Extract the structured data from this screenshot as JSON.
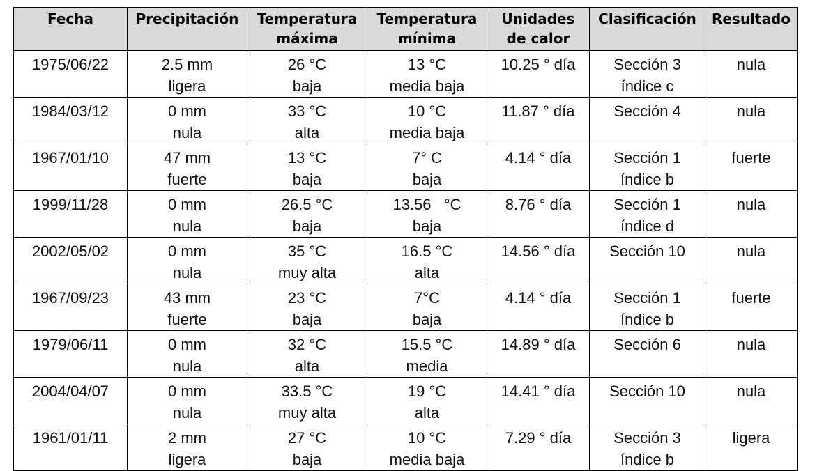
{
  "table": {
    "header": [
      [
        "Fecha"
      ],
      [
        "Precipitación"
      ],
      [
        "Temperatura",
        "máxima"
      ],
      [
        "Temperatura",
        "mínima"
      ],
      [
        "Unidades",
        "de calor"
      ],
      [
        "Clasificación"
      ],
      [
        "Resultado"
      ]
    ],
    "rows": [
      [
        [
          "1975/06/22"
        ],
        [
          "2.5 mm",
          "ligera"
        ],
        [
          "26 °C",
          "baja"
        ],
        [
          "13 °C",
          "media baja"
        ],
        [
          "10.25 ° día"
        ],
        [
          "Sección 3",
          "índice c"
        ],
        [
          "nula"
        ]
      ],
      [
        [
          "1984/03/12"
        ],
        [
          "0 mm",
          "nula"
        ],
        [
          "33 °C",
          "alta"
        ],
        [
          "10 °C",
          "media baja"
        ],
        [
          "11.87 ° día"
        ],
        [
          "Sección 4"
        ],
        [
          "nula"
        ]
      ],
      [
        [
          "1967/01/10"
        ],
        [
          "47 mm",
          "fuerte"
        ],
        [
          "13 °C",
          "baja"
        ],
        [
          "7° C",
          "baja"
        ],
        [
          "4.14 ° día"
        ],
        [
          "Sección 1",
          "índice b"
        ],
        [
          "fuerte"
        ]
      ],
      [
        [
          "1999/11/28"
        ],
        [
          "0 mm",
          "nula"
        ],
        [
          "26.5 °C",
          "baja"
        ],
        [
          "13.56   °C",
          "baja"
        ],
        [
          "8.76 ° día"
        ],
        [
          "Sección 1",
          "índice d"
        ],
        [
          "nula"
        ]
      ],
      [
        [
          "2002/05/02"
        ],
        [
          "0 mm",
          "nula"
        ],
        [
          "35 °C",
          "muy alta"
        ],
        [
          "16.5 °C",
          "alta"
        ],
        [
          "14.56 ° día"
        ],
        [
          "Sección 10"
        ],
        [
          "nula"
        ]
      ],
      [
        [
          "1967/09/23"
        ],
        [
          "43 mm",
          "fuerte"
        ],
        [
          "23 °C",
          "baja"
        ],
        [
          "7°C",
          "baja"
        ],
        [
          "4.14 ° día"
        ],
        [
          "Sección 1",
          "índice b"
        ],
        [
          "fuerte"
        ]
      ],
      [
        [
          "1979/06/11"
        ],
        [
          "0 mm",
          "nula"
        ],
        [
          "32 °C",
          "alta"
        ],
        [
          "15.5 °C",
          "media"
        ],
        [
          "14.89 ° día"
        ],
        [
          "Sección 6"
        ],
        [
          "nula"
        ]
      ],
      [
        [
          "2004/04/07"
        ],
        [
          "0 mm",
          "nula"
        ],
        [
          "33.5 °C",
          "muy alta"
        ],
        [
          "19 °C",
          "alta"
        ],
        [
          "14.41 ° día"
        ],
        [
          "Sección 10"
        ],
        [
          "nula"
        ]
      ],
      [
        [
          "1961/01/11"
        ],
        [
          "2 mm",
          "ligera"
        ],
        [
          "27 °C",
          "baja"
        ],
        [
          "10 °C",
          "media baja"
        ],
        [
          "7.29 ° día"
        ],
        [
          "Sección 3",
          "índice b"
        ],
        [
          "ligera"
        ]
      ]
    ]
  }
}
